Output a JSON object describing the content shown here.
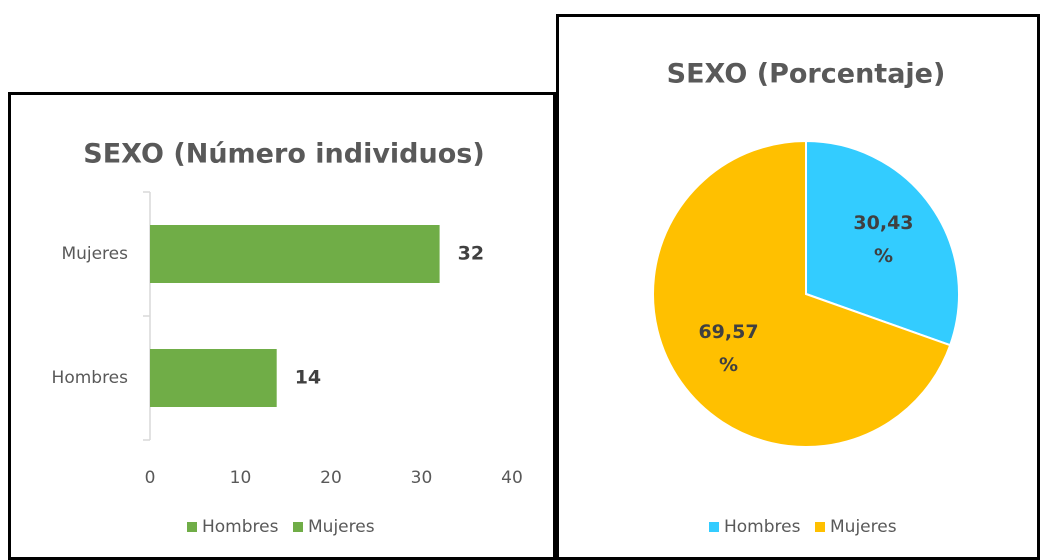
{
  "chart_data": [
    {
      "type": "bar",
      "orientation": "horizontal",
      "title": "SEXO (Número individuos)",
      "categories": [
        "Hombres",
        "Mujeres"
      ],
      "values": [
        14,
        32
      ],
      "color": "#70ad47",
      "xlim": [
        0,
        40
      ],
      "xticks": [
        0,
        10,
        20,
        30,
        40
      ],
      "legend": "bottom"
    },
    {
      "type": "pie",
      "title": "SEXO (Porcentaje)",
      "categories": [
        "Hombres",
        "Mujeres"
      ],
      "values": [
        30.43,
        69.57
      ],
      "value_labels": [
        "30,43 %",
        "69,57 %"
      ],
      "colors": [
        "#33ccff",
        "#ffc000"
      ],
      "legend": "bottom"
    }
  ]
}
